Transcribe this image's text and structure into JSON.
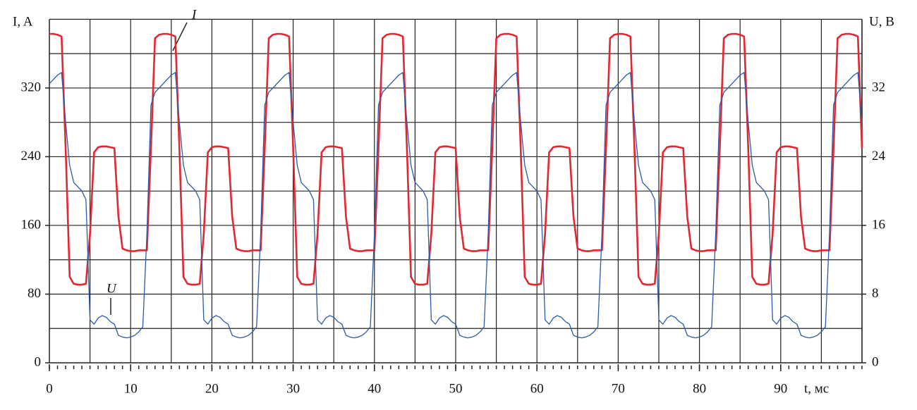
{
  "chart_data": {
    "type": "line",
    "xlabel": "t, мс",
    "ylabel": "I, A",
    "y2label": "U, B",
    "x": [
      0,
      0.5,
      1,
      1.5,
      2,
      2.5,
      3,
      3.5,
      4,
      4.5,
      5,
      5.5,
      6,
      6.5,
      7,
      7.5,
      8,
      8.5,
      9,
      9.5,
      10,
      10.5,
      11,
      11.5,
      12,
      12.5,
      13,
      13.5,
      14,
      14.5,
      15,
      15.5,
      16,
      16.5,
      17,
      17.5,
      18,
      18.5,
      19,
      19.5,
      20,
      20.5,
      21,
      21.5,
      22,
      22.5,
      23,
      23.5,
      24,
      24.5,
      25,
      25.5,
      26,
      26.5,
      27,
      27.5,
      28,
      28.5,
      29,
      29.5,
      30,
      30.5,
      31,
      31.5,
      32,
      32.5,
      33,
      33.5,
      34,
      34.5,
      35,
      35.5,
      36,
      36.5,
      37,
      37.5,
      38,
      38.5,
      39,
      39.5,
      40,
      40.5,
      41,
      41.5,
      42,
      42.5,
      43,
      43.5,
      44,
      44.5,
      45,
      45.5,
      46,
      46.5,
      47,
      47.5,
      48,
      48.5,
      49,
      49.5,
      50,
      50.5,
      51,
      51.5,
      52,
      52.5,
      53,
      53.5,
      54,
      54.5,
      55,
      55.5,
      56,
      56.5,
      57,
      57.5,
      58,
      58.5,
      59,
      59.5,
      60,
      60.5,
      61,
      61.5,
      62,
      62.5,
      63,
      63.5,
      64,
      64.5,
      65,
      65.5,
      66,
      66.5,
      67,
      67.5,
      68,
      68.5,
      69,
      69.5,
      70,
      70.5,
      71,
      71.5,
      72,
      72.5,
      73,
      73.5,
      74,
      74.5,
      75,
      75.5,
      76,
      76.5,
      77,
      77.5,
      78,
      78.5,
      79,
      79.5,
      80,
      80.5,
      81,
      81.5,
      82,
      82.5,
      83,
      83.5,
      84,
      84.5,
      85,
      85.5,
      86,
      86.5,
      87,
      87.5,
      88,
      88.5,
      89,
      89.5,
      90,
      90.5,
      91,
      91.5,
      92,
      92.5,
      93,
      93.5,
      94,
      94.5,
      95,
      95.5,
      96,
      96.5,
      97,
      97.5,
      98,
      98.5,
      99,
      99.5,
      100
    ],
    "series": [
      {
        "name": "I",
        "color": "#e3262f",
        "values": [
          383,
          383,
          382,
          380,
          250,
          100,
          92,
          91,
          91,
          92,
          150,
          245,
          251,
          252,
          252,
          251,
          250,
          170,
          133,
          131,
          130,
          130,
          131,
          131,
          131,
          250,
          378,
          382,
          383,
          383,
          382,
          380,
          250,
          100,
          92,
          91,
          91,
          92,
          150,
          245,
          251,
          252,
          252,
          251,
          250,
          170,
          133,
          131,
          130,
          130,
          131,
          131,
          131,
          250,
          378,
          382,
          383,
          383,
          382,
          380,
          250,
          100,
          92,
          91,
          91,
          92,
          150,
          245,
          251,
          252,
          252,
          251,
          250,
          170,
          133,
          131,
          130,
          130,
          131,
          131,
          131,
          250,
          378,
          382,
          383,
          383,
          382,
          380,
          250,
          100,
          92,
          91,
          91,
          92,
          150,
          245,
          251,
          252,
          252,
          251,
          250,
          170,
          133,
          131,
          130,
          130,
          131,
          131,
          131,
          250,
          378,
          382,
          383,
          383,
          382,
          380,
          250,
          100,
          92,
          91,
          91,
          92,
          150,
          245,
          251,
          252,
          252,
          251,
          250,
          170,
          133,
          131,
          130,
          130,
          131,
          131,
          131,
          250,
          378,
          382,
          383,
          383,
          382,
          380,
          250,
          100,
          92,
          91,
          91,
          92,
          150,
          245,
          251,
          252,
          252,
          251,
          250,
          170,
          133,
          131,
          130,
          130,
          131,
          131,
          131,
          250,
          378,
          382,
          383,
          383,
          382,
          380,
          250,
          100,
          92,
          91,
          91,
          92,
          150,
          245,
          251,
          252,
          252,
          251,
          250,
          170,
          133,
          131,
          130,
          130,
          131,
          131,
          131,
          250,
          378,
          382,
          383,
          383,
          382,
          380,
          250
        ]
      },
      {
        "name": "U",
        "color": "#2d5aa8",
        "axis": "y2",
        "values": [
          32.5,
          33,
          33.5,
          33.8,
          28,
          23,
          21,
          20.5,
          20,
          19,
          5,
          4.5,
          5.2,
          5.5,
          5.3,
          4.8,
          4.5,
          3.2,
          3,
          2.9,
          3,
          3.2,
          3.6,
          4.2,
          15,
          30,
          31.5,
          32,
          32.5,
          33,
          33.5,
          33.8,
          28,
          23,
          21,
          20.5,
          20,
          19,
          5,
          4.5,
          5.2,
          5.5,
          5.3,
          4.8,
          4.5,
          3.2,
          3,
          2.9,
          3,
          3.2,
          3.6,
          4.2,
          15,
          30,
          31.5,
          32,
          32.5,
          33,
          33.5,
          33.8,
          28,
          23,
          21,
          20.5,
          20,
          19,
          5,
          4.5,
          5.2,
          5.5,
          5.3,
          4.8,
          4.5,
          3.2,
          3,
          2.9,
          3,
          3.2,
          3.6,
          4.2,
          15,
          30,
          31.5,
          32,
          32.5,
          33,
          33.5,
          33.8,
          28,
          23,
          21,
          20.5,
          20,
          19,
          5,
          4.5,
          5.2,
          5.5,
          5.3,
          4.8,
          4.5,
          3.2,
          3,
          2.9,
          3,
          3.2,
          3.6,
          4.2,
          15,
          30,
          31.5,
          32,
          32.5,
          33,
          33.5,
          33.8,
          28,
          23,
          21,
          20.5,
          20,
          19,
          5,
          4.5,
          5.2,
          5.5,
          5.3,
          4.8,
          4.5,
          3.2,
          3,
          2.9,
          3,
          3.2,
          3.6,
          4.2,
          15,
          30,
          31.5,
          32,
          32.5,
          33,
          33.5,
          33.8,
          28,
          23,
          21,
          20.5,
          20,
          19,
          5,
          4.5,
          5.2,
          5.5,
          5.3,
          4.8,
          4.5,
          3.2,
          3,
          2.9,
          3,
          3.2,
          3.6,
          4.2,
          15,
          30,
          31.5,
          32,
          32.5,
          33,
          33.5,
          33.8,
          28,
          23,
          21,
          20.5,
          20,
          19,
          5,
          4.5,
          5.2,
          5.5,
          5.3,
          4.8,
          4.5,
          3.2,
          3,
          2.9,
          3,
          3.2,
          3.6,
          4.2,
          15,
          30,
          31.5,
          32,
          32.5,
          33,
          33.5,
          33.8,
          28
        ]
      }
    ],
    "xlim": [
      0,
      100
    ],
    "xticks": [
      0,
      10,
      20,
      30,
      40,
      50,
      60,
      70,
      80,
      90
    ],
    "xgrid": [
      5,
      10,
      15,
      20,
      25,
      30,
      35,
      40,
      45,
      50,
      55,
      60,
      65,
      70,
      75,
      80,
      85,
      90,
      95,
      100
    ],
    "xminor_ticks": [
      0,
      1,
      2,
      3,
      4,
      5,
      6,
      7,
      8,
      9,
      10,
      11,
      12,
      13,
      14,
      15,
      16,
      17,
      18,
      19,
      20,
      21,
      22,
      23,
      24,
      25,
      26,
      27,
      28,
      29,
      30,
      31,
      32,
      33,
      34,
      35,
      36,
      37,
      38,
      39,
      40,
      41,
      42,
      43,
      44,
      45,
      46,
      47,
      48,
      49,
      50,
      51,
      52,
      53,
      54,
      55,
      56,
      57,
      58,
      59,
      60,
      61,
      62,
      63,
      64,
      65,
      66,
      67,
      68,
      69,
      70,
      71,
      72,
      73,
      74,
      75,
      76,
      77,
      78,
      79,
      80,
      81,
      82,
      83,
      84,
      85,
      86,
      87,
      88,
      89,
      90,
      91,
      92,
      93,
      94,
      95,
      96,
      97,
      98,
      99,
      100
    ],
    "ylim": [
      0,
      400
    ],
    "yticks": [
      0,
      80,
      160,
      240,
      320
    ],
    "ygrid": [
      40,
      80,
      120,
      160,
      200,
      240,
      280,
      320,
      360,
      400
    ],
    "y2lim": [
      0,
      40
    ],
    "y2ticks": [
      0,
      8,
      16,
      24,
      32
    ],
    "grid": true
  }
}
